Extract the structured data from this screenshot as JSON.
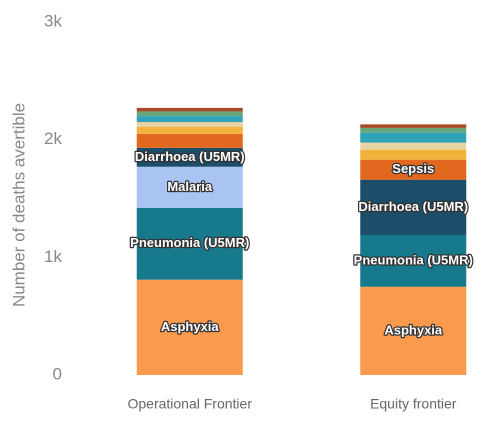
{
  "chart_data": {
    "type": "stacked_bar",
    "y_label": "Number of deaths avertible",
    "categories": [
      "Operational Frontier",
      "Equity frontier"
    ],
    "series": [
      {
        "name": "Asphyxia",
        "color": "#f99a4c",
        "values": [
          810,
          750
        ]
      },
      {
        "name": "Pneumonia (U5MR)",
        "color": "#17798c",
        "values": [
          610,
          440
        ]
      },
      {
        "name": "Malaria",
        "color": "#a9c3f2",
        "values": [
          350,
          0
        ]
      },
      {
        "name": "Diarrhoea (U5MR)",
        "color": "#1c4d69",
        "values": [
          160,
          470
        ]
      },
      {
        "name": "Sepsis",
        "color": "#e2681f",
        "values": [
          120,
          170
        ]
      },
      {
        "color": "#f2b33a",
        "values": [
          60,
          85
        ]
      },
      {
        "color": "#e8d3a2",
        "values": [
          40,
          60
        ]
      },
      {
        "color": "#2fa3ba",
        "values": [
          50,
          85
        ]
      },
      {
        "color": "#6aa57a",
        "values": [
          40,
          40
        ]
      },
      {
        "color": "#a84a2a",
        "values": [
          30,
          30
        ]
      }
    ],
    "ylim": [
      0,
      3000
    ],
    "yticks": [
      0,
      {
        "value": 1000,
        "label": "1k"
      },
      {
        "value": 2000,
        "label": "2k"
      },
      {
        "value": 3000,
        "label": "3k"
      }
    ]
  }
}
